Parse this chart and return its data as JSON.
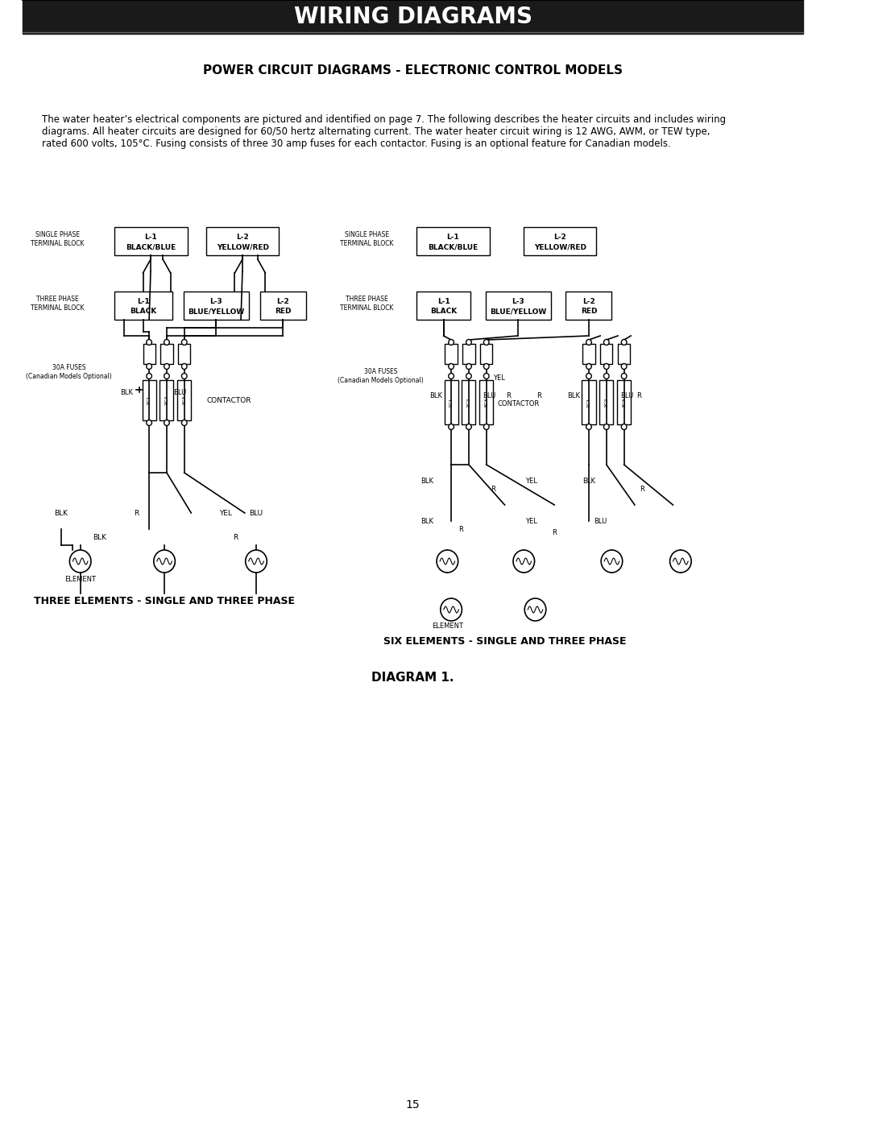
{
  "title_bar_text": "WIRING DIAGRAMS",
  "title_bar_bg": "#1a1a1a",
  "title_bar_text_color": "#ffffff",
  "section_title": "POWER CIRCUIT DIAGRAMS - ELECTRONIC CONTROL MODELS",
  "body_text": "The water heater’s electrical components are pictured and identified on page 7. The following describes the heater circuits and includes wiring\ndiagrams. All heater circuits are designed for 60/50 hertz alternating current. The water heater circuit wiring is 12 AWG, AWM, or TEW type,\nrated 600 volts, 105°C. Fusing consists of three 30 amp fuses for each contactor. Fusing is an optional feature for Canadian models.",
  "left_diagram_title": "THREE ELEMENTS - SINGLE AND THREE PHASE",
  "right_diagram_title": "SIX ELEMENTS - SINGLE AND THREE PHASE",
  "diagram_label": "DIAGRAM 1.",
  "page_number": "15",
  "bg_color": "#ffffff",
  "line_color": "#000000",
  "box_color": "#000000"
}
